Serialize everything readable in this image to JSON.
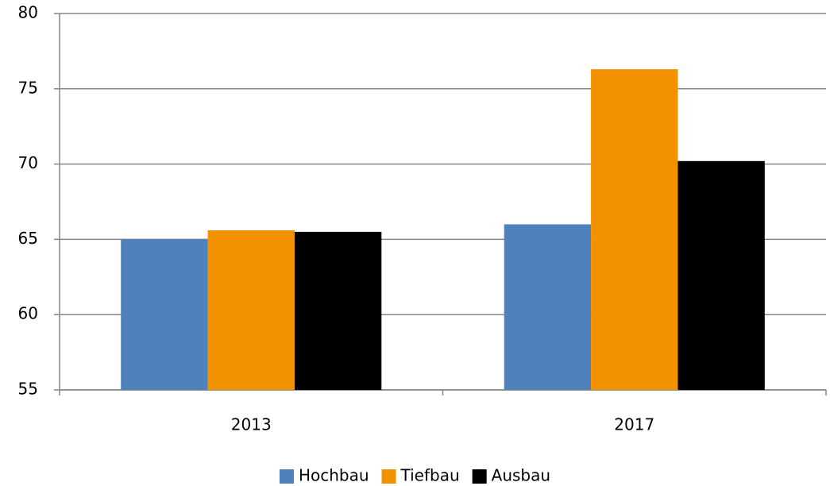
{
  "chart_data": {
    "type": "bar",
    "categories": [
      "2013",
      "2017"
    ],
    "series": [
      {
        "name": "Hochbau",
        "color": "#4f81bd",
        "values": [
          65.0,
          66.0
        ]
      },
      {
        "name": "Tiefbau",
        "color": "#f39200",
        "values": [
          65.6,
          76.3
        ]
      },
      {
        "name": "Ausbau",
        "color": "#000000",
        "values": [
          65.5,
          70.2
        ]
      }
    ],
    "ylim": [
      55,
      80
    ],
    "yticks": [
      55,
      60,
      65,
      70,
      75,
      80
    ],
    "grid": true,
    "legend": "bottom"
  }
}
